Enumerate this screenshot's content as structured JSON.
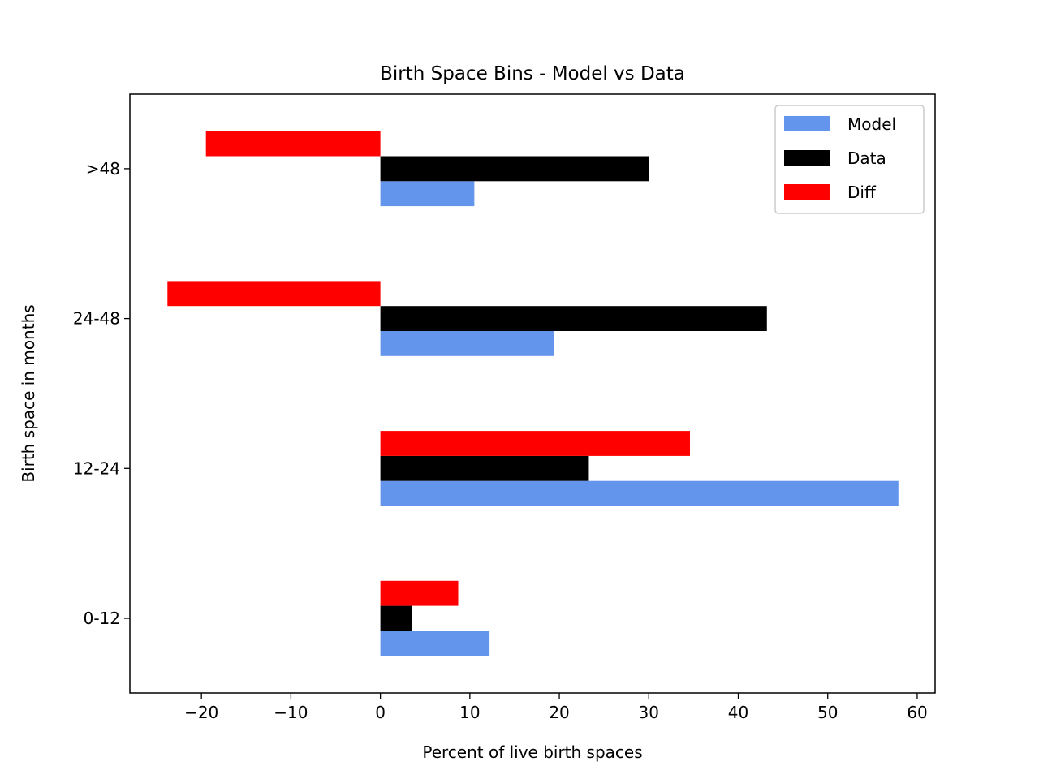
{
  "chart_data": {
    "type": "bar",
    "orientation": "horizontal",
    "title": "Birth Space Bins - Model vs Data",
    "xlabel": "Percent of live birth spaces",
    "ylabel": "Birth space in months",
    "categories": [
      "0-12",
      "12-24",
      "24-48",
      ">48"
    ],
    "series": [
      {
        "name": "Model",
        "color": "#6495ED",
        "values": [
          12.2,
          57.9,
          19.4,
          10.5
        ]
      },
      {
        "name": "Data",
        "color": "#000000",
        "values": [
          3.5,
          23.3,
          43.2,
          30.0
        ]
      },
      {
        "name": "Diff",
        "color": "#FF0000",
        "values": [
          8.7,
          34.6,
          -23.8,
          -19.5
        ]
      }
    ],
    "xlim": [
      -28,
      62
    ],
    "xticks": [
      -20,
      -10,
      0,
      10,
      20,
      30,
      40,
      50,
      60
    ],
    "xtick_labels": [
      "−20",
      "−10",
      "0",
      "10",
      "20",
      "30",
      "40",
      "50",
      "60"
    ],
    "grid": false,
    "legend_position": "top-right"
  }
}
